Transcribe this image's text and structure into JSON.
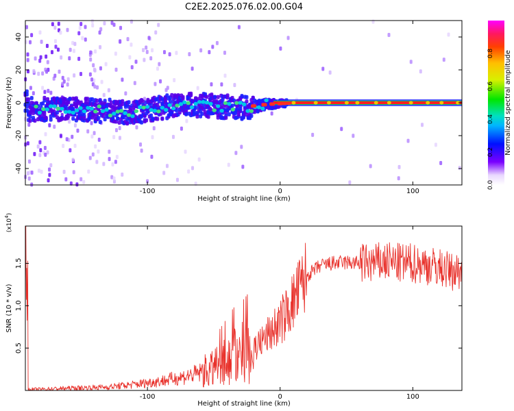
{
  "title": "C2E2.2025.076.02.00.G04",
  "colors": {
    "trace": "#e8302a",
    "frame": "#000000"
  },
  "chart_data": [
    {
      "type": "heatmap",
      "xlabel": "Height of straight line (km)",
      "ylabel": "Frequency (Hz)",
      "xlim": [
        -192,
        137
      ],
      "ylim": [
        -50,
        50
      ],
      "x_ticks": [
        -100,
        0,
        100
      ],
      "y_ticks": [
        -40,
        -20,
        0,
        20,
        40
      ],
      "colorbar": {
        "label": "Normalized spectral amplitude",
        "range": [
          0.0,
          1.0
        ],
        "ticks": [
          0.0,
          0.2,
          0.4,
          0.6,
          0.8
        ]
      },
      "ridge": [
        {
          "x": -190,
          "f": -4
        },
        {
          "x": -150,
          "f": -4
        },
        {
          "x": -110,
          "f": -6
        },
        {
          "x": -90,
          "f": -3
        },
        {
          "x": -70,
          "f": -1
        },
        {
          "x": -50,
          "f": -2
        },
        {
          "x": -30,
          "f": -3
        },
        {
          "x": -10,
          "f": -1
        },
        {
          "x": 10,
          "f": 0
        },
        {
          "x": 137,
          "f": 0
        }
      ]
    },
    {
      "type": "line",
      "xlabel": "Height of straight line (km)",
      "ylabel": "SNR (10 * v/v)",
      "y_multiplier": "(x10",
      "y_multiplier_exp": "4",
      "y_multiplier_close": ")",
      "xlim": [
        -192,
        137
      ],
      "ylim": [
        0,
        19400
      ],
      "x_ticks": [
        -100,
        0,
        100
      ],
      "y_ticks": [
        5000,
        10000,
        15000
      ],
      "y_tick_labels": [
        "0.5",
        "1.0",
        "1.5"
      ],
      "series": [
        {
          "x": [
            -190,
            -160,
            -130,
            -110,
            -90,
            -80,
            -70,
            -60,
            -50,
            -45,
            -40,
            -35,
            -30,
            -25,
            -20,
            -15,
            -10,
            -5,
            0,
            5,
            10,
            15,
            20,
            30,
            40,
            50,
            60,
            70,
            80,
            90,
            100,
            110,
            120,
            130,
            137
          ],
          "y": [
            100,
            250,
            400,
            700,
            1100,
            1400,
            1700,
            2100,
            2500,
            3000,
            3500,
            4000,
            4200,
            4600,
            5200,
            5600,
            6400,
            7200,
            8000,
            9200,
            10500,
            12000,
            13500,
            14700,
            15000,
            15100,
            15000,
            15000,
            15200,
            15000,
            15000,
            14800,
            14500,
            14000,
            14200
          ]
        }
      ]
    }
  ]
}
